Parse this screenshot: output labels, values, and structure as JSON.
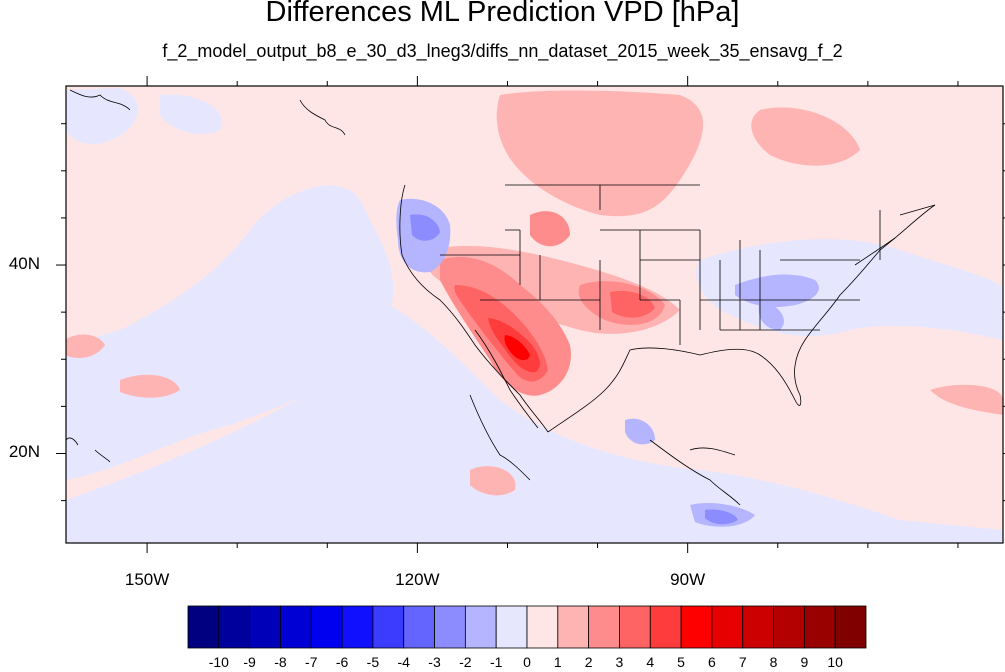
{
  "title": "Differences ML Prediction VPD [hPa]",
  "subtitle": "f_2_model_output_b8_e_30_d3_lneg3/diffs_nn_dataset_2015_week_35_ensavg_f_2",
  "lon_labels": [
    {
      "value": -150,
      "text": "150W"
    },
    {
      "value": -120,
      "text": "120W"
    },
    {
      "value": -90,
      "text": "90W"
    }
  ],
  "lat_labels": [
    {
      "value": 40,
      "text": "40N"
    },
    {
      "value": 20,
      "text": "20N"
    }
  ],
  "map_extent": {
    "lon": [
      -159,
      -55
    ],
    "lat": [
      10.5,
      59
    ]
  },
  "colorbar": {
    "labels": [
      "-10",
      "-9",
      "-8",
      "-7",
      "-6",
      "-5",
      "-4",
      "-3",
      "-2",
      "-1",
      "0",
      "1",
      "2",
      "3",
      "4",
      "5",
      "6",
      "7",
      "8",
      "9",
      "10"
    ],
    "colors": [
      "#000080",
      "#00009c",
      "#0000b8",
      "#0000d4",
      "#0000f0",
      "#1010ff",
      "#3c3cff",
      "#6464ff",
      "#8c8cff",
      "#b4b4ff",
      "#e6e6ff",
      "#ffe6e6",
      "#ffb4b4",
      "#ff8c8c",
      "#ff6464",
      "#ff3c3c",
      "#ff0000",
      "#e60000",
      "#cc0000",
      "#b30000",
      "#990000",
      "#800000"
    ]
  },
  "chart_data": {
    "type": "heatmap",
    "title": "Differences ML Prediction VPD [hPa]",
    "subtitle": "f_2_model_output_b8_e_30_d3_lneg3/diffs_nn_dataset_2015_week_35_ensavg_f_2",
    "xlim": [
      -159,
      -55
    ],
    "ylim": [
      10.5,
      59
    ],
    "x_ticks": [
      "150W",
      "120W",
      "90W"
    ],
    "y_ticks": [
      "40N",
      "20N"
    ],
    "color_levels": [
      -10,
      -9,
      -8,
      -7,
      -6,
      -5,
      -4,
      -3,
      -2,
      -1,
      0,
      1,
      2,
      3,
      4,
      5,
      6,
      7,
      8,
      9,
      10
    ],
    "background_value_range": [
      -1,
      1
    ],
    "features": [
      {
        "region": "US Southwest / Arizona - northwest Mexico",
        "value_range": [
          5,
          7
        ]
      },
      {
        "region": "California / Nevada / Utah",
        "value_range": [
          2,
          4
        ]
      },
      {
        "region": "Southern Plains / Oklahoma",
        "value_range": [
          2,
          4
        ]
      },
      {
        "region": "Western Canada prairies",
        "value_range": [
          1,
          2
        ]
      },
      {
        "region": "Pacific Northwest",
        "value_range": [
          -3,
          -1
        ]
      },
      {
        "region": "Tennessee / Kentucky",
        "value_range": [
          -3,
          -1
        ]
      },
      {
        "region": "Central America / Caribbean",
        "value_range": [
          -3,
          -1
        ]
      }
    ]
  }
}
